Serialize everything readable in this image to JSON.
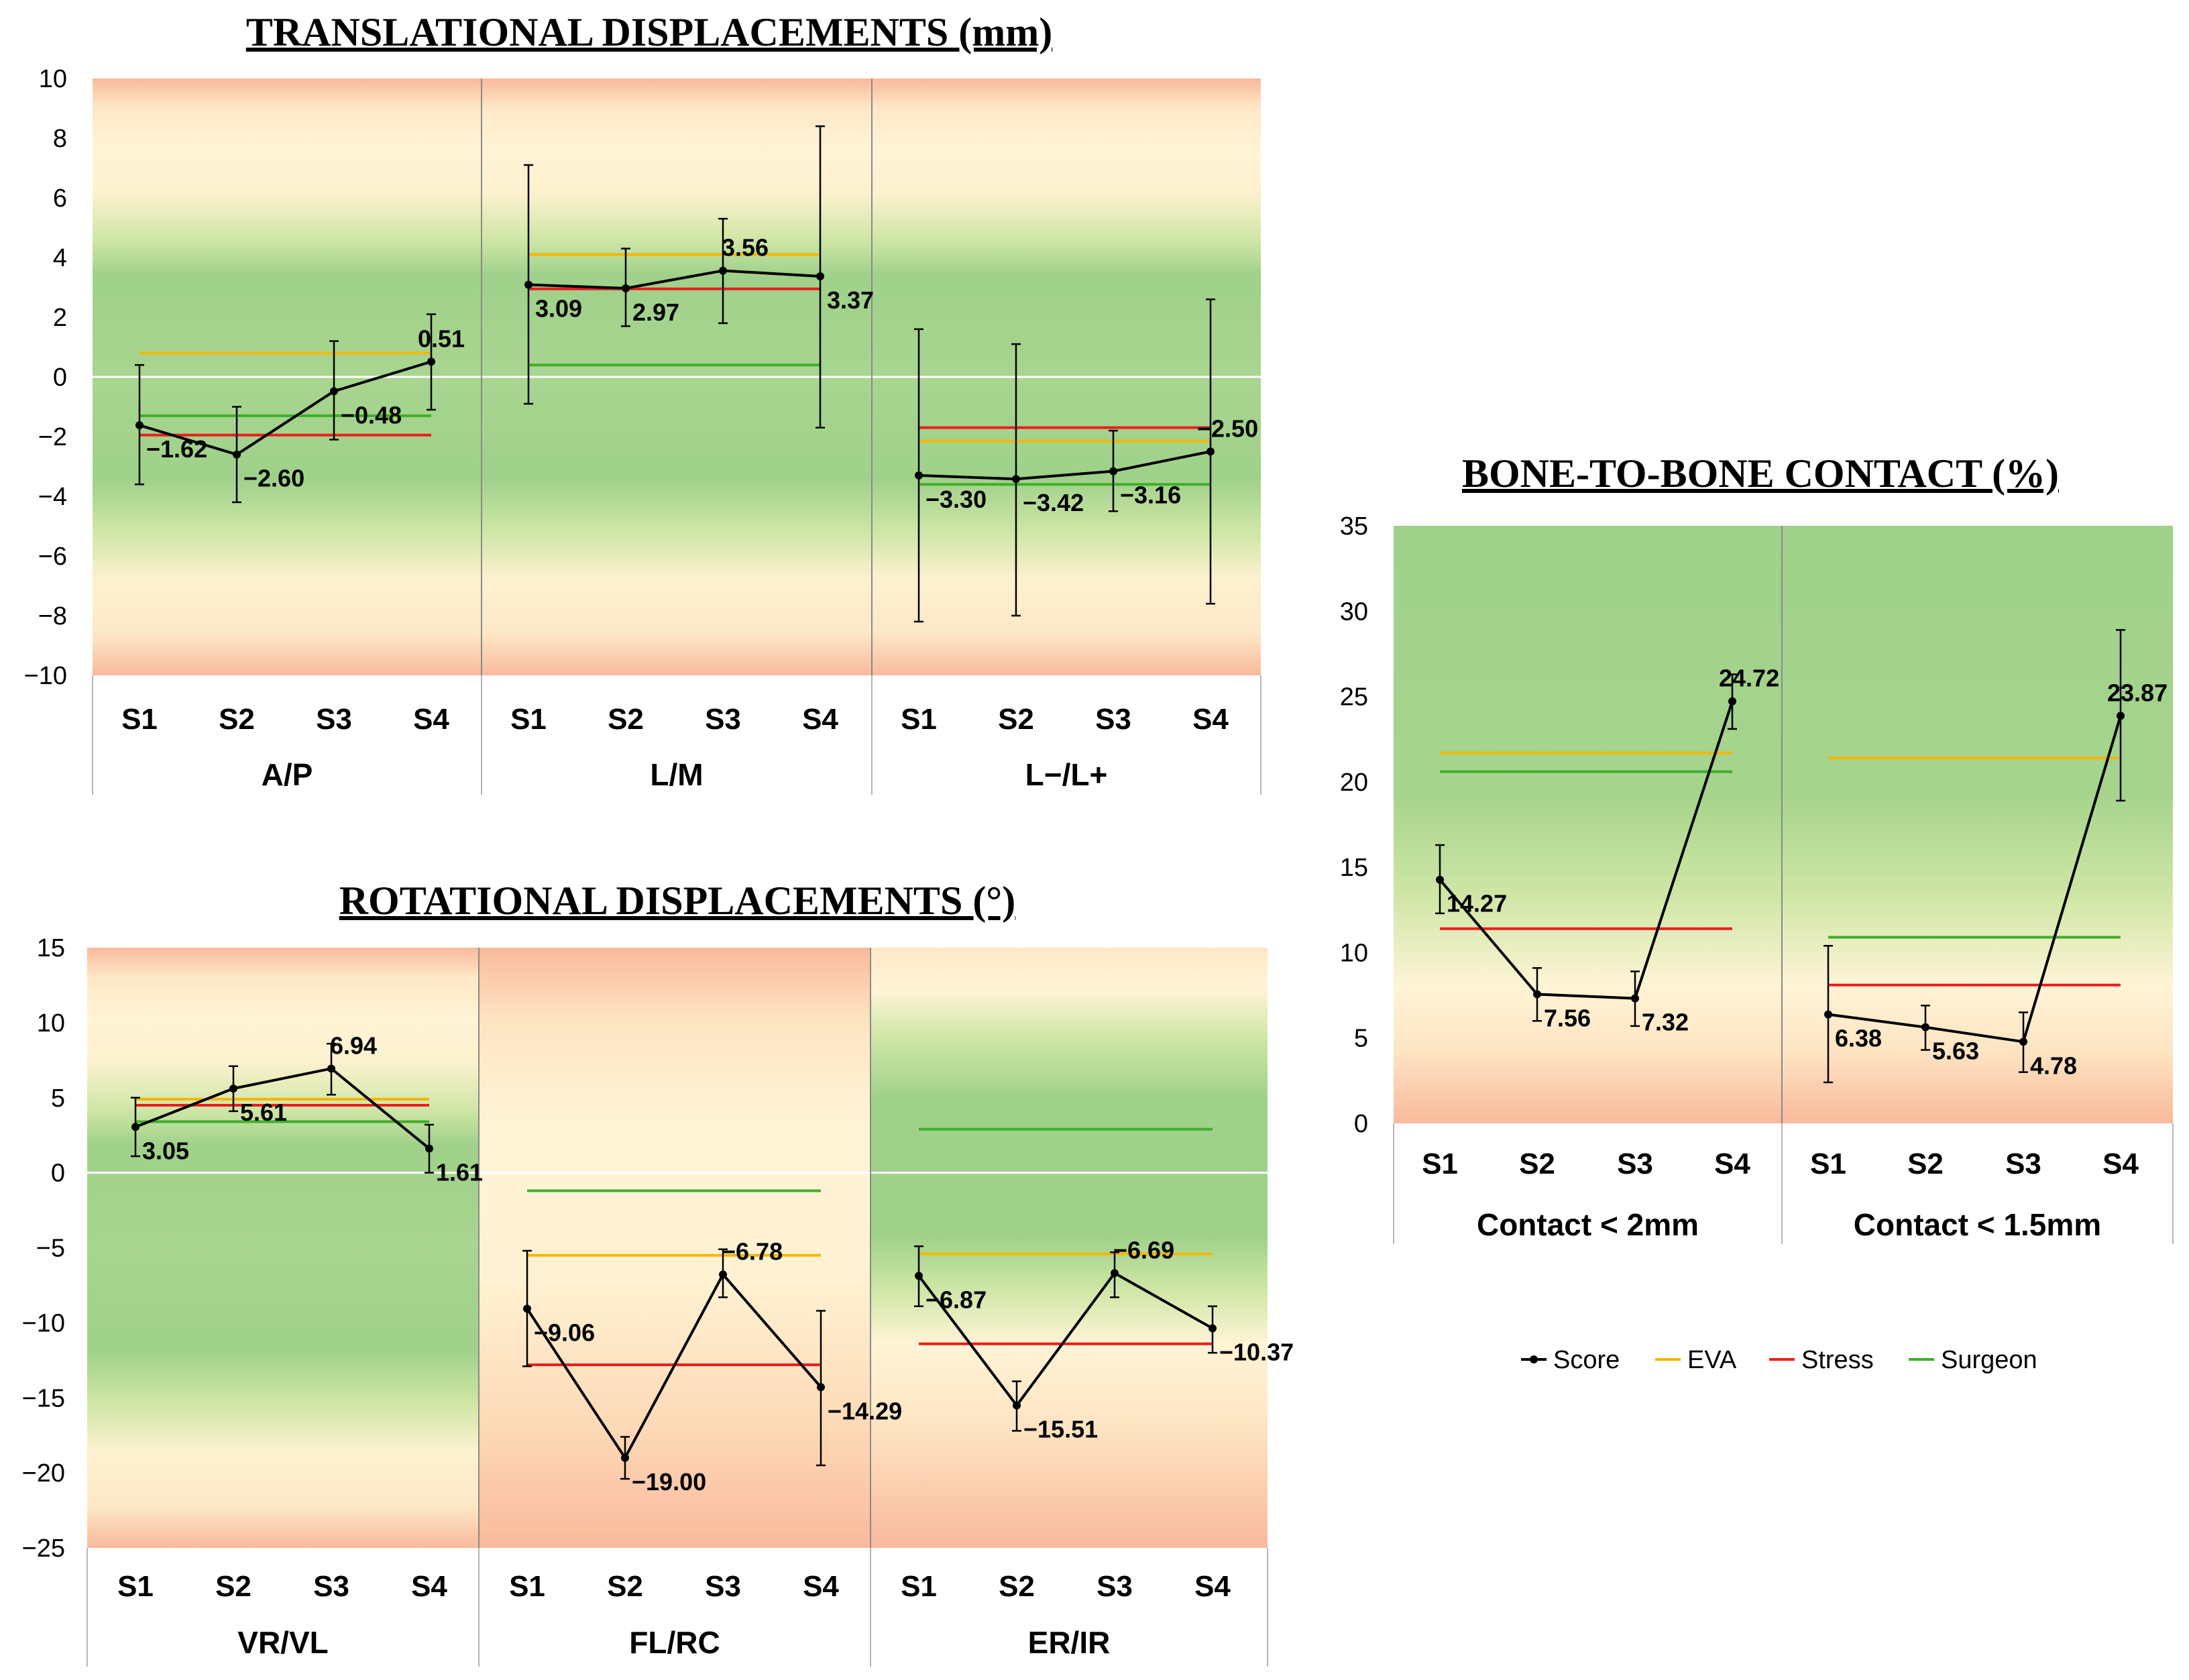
{
  "chart_data": [
    {
      "id": "translational",
      "type": "line",
      "title": "TRANSLATIONAL DISPLACEMENTS (mm)",
      "ylim": [
        -10,
        10
      ],
      "yticks": [
        10,
        8,
        6,
        4,
        2,
        0,
        -2,
        -4,
        -6,
        -8,
        -10
      ],
      "categories": [
        "S1",
        "S2",
        "S3",
        "S4"
      ],
      "background": "green-center",
      "groups": [
        {
          "label": "A/P",
          "score": [
            -1.62,
            -2.6,
            -0.48,
            0.51
          ],
          "labels": [
            "−1.62",
            "−2.60",
            "−0.48",
            "0.51"
          ],
          "err_low": [
            -3.6,
            -4.2,
            -2.1,
            -1.1
          ],
          "err_high": [
            0.4,
            -1.0,
            1.2,
            2.1
          ],
          "eva": 0.8,
          "stress": -1.95,
          "surgeon": -1.3
        },
        {
          "label": "L/M",
          "score": [
            3.09,
            2.97,
            3.56,
            3.37
          ],
          "labels": [
            "3.09",
            "2.97",
            "3.56",
            "3.37"
          ],
          "err_low": [
            -0.9,
            1.7,
            1.8,
            -1.7
          ],
          "err_high": [
            7.1,
            4.3,
            5.3,
            8.4
          ],
          "eva": 4.1,
          "stress": 2.95,
          "surgeon": 0.4
        },
        {
          "label": "L−/L+",
          "score": [
            -3.3,
            -3.42,
            -3.16,
            -2.5
          ],
          "labels": [
            "−3.30",
            "−3.42",
            "−3.16",
            "−2.50"
          ],
          "err_low": [
            -8.2,
            -8.0,
            -4.5,
            -7.6
          ],
          "err_high": [
            1.6,
            1.1,
            -1.8,
            2.6
          ],
          "eva": -2.15,
          "stress": -1.7,
          "surgeon": -3.6
        }
      ]
    },
    {
      "id": "rotational",
      "type": "line",
      "title": "ROTATIONAL DISPLACEMENTS (°)",
      "ylim": [
        -25,
        15
      ],
      "yticks": [
        15,
        10,
        5,
        0,
        -5,
        -10,
        -15,
        -20,
        -25
      ],
      "categories": [
        "S1",
        "S2",
        "S3",
        "S4"
      ],
      "groups": [
        {
          "label": "VR/VL",
          "background": "green-center",
          "score": [
            3.05,
            5.61,
            6.94,
            1.61
          ],
          "labels": [
            "3.05",
            "5.61",
            "6.94",
            "1.61"
          ],
          "err_low": [
            1.1,
            4.1,
            5.2,
            0.0
          ],
          "err_high": [
            5.0,
            7.1,
            8.6,
            3.2
          ],
          "eva": 4.9,
          "stress": 4.5,
          "surgeon": 3.4
        },
        {
          "label": "FL/RC",
          "background": "red-edges",
          "score": [
            -9.06,
            -19.0,
            -6.78,
            -14.29
          ],
          "labels": [
            "−9.06",
            "−19.00",
            "−6.78",
            "−14.29"
          ],
          "err_low": [
            -12.9,
            -20.4,
            -8.3,
            -19.5
          ],
          "err_high": [
            -5.2,
            -17.6,
            -5.1,
            -9.2
          ],
          "eva": -5.5,
          "stress": -12.8,
          "surgeon": -1.2
        },
        {
          "label": "ER/IR",
          "background": "green-upper",
          "score": [
            -6.87,
            -15.51,
            -6.69,
            -10.37
          ],
          "labels": [
            "−6.87",
            "−15.51",
            "−6.69",
            "−10.37"
          ],
          "err_low": [
            -8.9,
            -17.2,
            -8.3,
            -12.0
          ],
          "err_high": [
            -4.9,
            -13.9,
            -5.3,
            -8.9
          ],
          "eva": -5.4,
          "stress": -11.4,
          "surgeon": 2.9
        }
      ]
    },
    {
      "id": "contact",
      "type": "line",
      "title": "BONE-TO-BONE CONTACT (%)",
      "ylim": [
        0,
        35
      ],
      "yticks": [
        35,
        30,
        25,
        20,
        15,
        10,
        5,
        0
      ],
      "categories": [
        "S1",
        "S2",
        "S3",
        "S4"
      ],
      "background": "green-top",
      "groups": [
        {
          "label": "Contact < 2mm",
          "score": [
            14.27,
            7.56,
            7.32,
            24.72
          ],
          "labels": [
            "14.27",
            "7.56",
            "7.32",
            "24.72"
          ],
          "err_low": [
            12.3,
            6.0,
            5.7,
            23.1
          ],
          "err_high": [
            16.3,
            9.1,
            8.9,
            26.3
          ],
          "eva": 21.7,
          "stress": 11.4,
          "surgeon": 20.6
        },
        {
          "label": "Contact < 1.5mm",
          "score": [
            6.38,
            5.63,
            4.78,
            23.87
          ],
          "labels": [
            "6.38",
            "5.63",
            "4.78",
            "23.87"
          ],
          "err_low": [
            2.4,
            4.3,
            3.0,
            18.9
          ],
          "err_high": [
            10.4,
            6.9,
            6.5,
            28.9
          ],
          "eva": 21.4,
          "stress": 8.1,
          "surgeon": 10.9
        }
      ]
    }
  ],
  "legend": [
    {
      "name": "Score",
      "color": "#000000",
      "marker": true
    },
    {
      "name": "EVA",
      "color": "#f3b700"
    },
    {
      "name": "Stress",
      "color": "#ee1c1c"
    },
    {
      "name": "Surgeon",
      "color": "#3fae2a"
    }
  ]
}
